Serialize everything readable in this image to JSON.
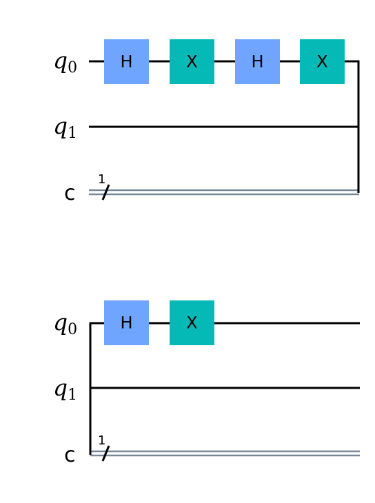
{
  "colors": {
    "h_gate": "#6fa4ff",
    "x_gate": "#05bab6",
    "wire": "#000000",
    "classical_wire": "#778899"
  },
  "circuits": [
    {
      "qubit_labels": [
        {
          "base": "q",
          "sub": "0"
        },
        {
          "base": "q",
          "sub": "1"
        }
      ],
      "classical_label": "c",
      "classical_bits": "1",
      "gates": [
        {
          "qubit": 0,
          "label": "H",
          "kind": "h"
        },
        {
          "qubit": 0,
          "label": "X",
          "kind": "x"
        },
        {
          "qubit": 0,
          "label": "H",
          "kind": "h"
        },
        {
          "qubit": 0,
          "label": "X",
          "kind": "x"
        }
      ]
    },
    {
      "qubit_labels": [
        {
          "base": "q",
          "sub": "0"
        },
        {
          "base": "q",
          "sub": "1"
        }
      ],
      "classical_label": "c",
      "classical_bits": "1",
      "gates": [
        {
          "qubit": 0,
          "label": "H",
          "kind": "h"
        },
        {
          "qubit": 0,
          "label": "X",
          "kind": "x"
        }
      ]
    }
  ]
}
